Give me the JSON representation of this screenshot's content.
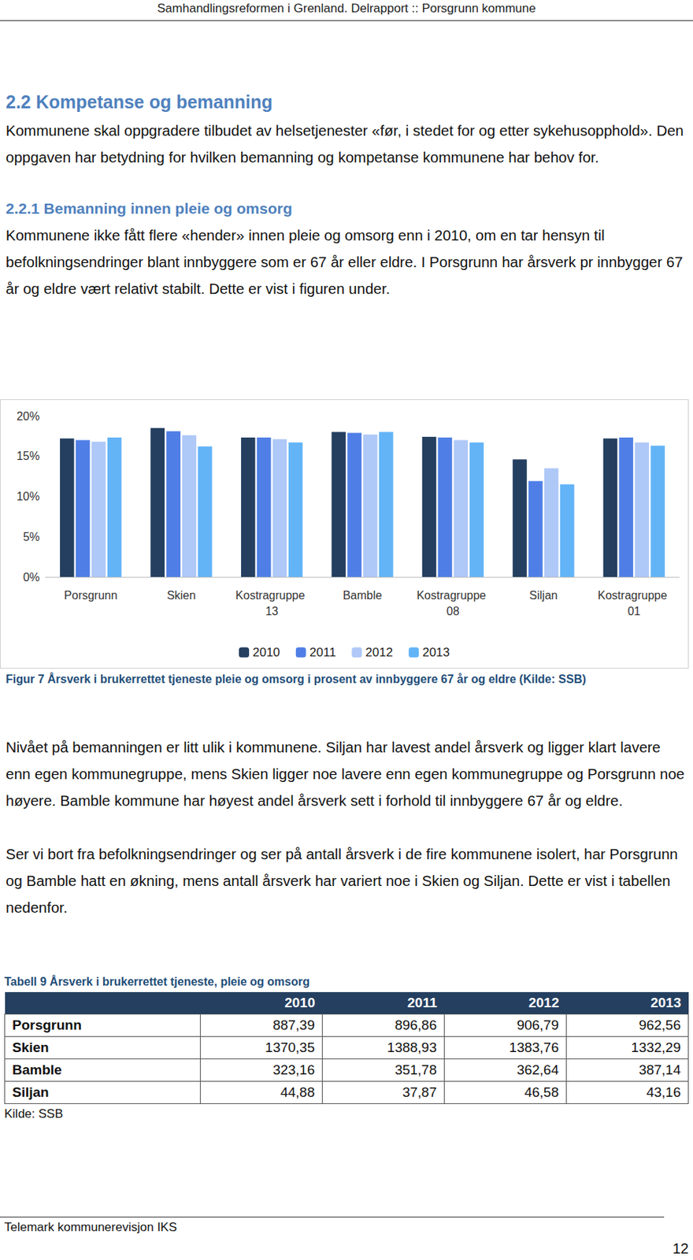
{
  "header": "Samhandlingsreformen i Grenland. Delrapport :: Porsgrunn kommune",
  "section": {
    "title": "2.2 Kompetanse og bemanning",
    "paragraphs": [
      "Kommunene skal oppgradere tilbudet av helsetjenester «før, i stedet for og etter sykehusopphold». Den oppgaven har betydning for hvilken bemanning og kompetanse kommunene har behov for."
    ]
  },
  "subsection": {
    "title": "2.2.1 Bemanning innen pleie og omsorg",
    "paragraphs": [
      "Kommunene ikke fått flere «hender» innen pleie og omsorg enn i 2010, om en tar hensyn til befolkningsendringer blant innbyggere som er 67 år eller eldre. I Porsgrunn har årsverk pr innbygger 67 år og eldre vært relativt stabilt. Dette er vist i figuren under."
    ]
  },
  "chart_data": {
    "type": "bar",
    "categories": [
      "Porsgrunn",
      "Skien",
      "Kostragruppe 13",
      "Bamble",
      "Kostragruppe 08",
      "Siljan",
      "Kostragruppe 01"
    ],
    "series": [
      {
        "name": "2010",
        "color": "#243f60",
        "values": [
          17.2,
          18.5,
          17.3,
          18.0,
          17.4,
          14.6,
          17.2
        ]
      },
      {
        "name": "2011",
        "color": "#4f7fe6",
        "values": [
          17.0,
          18.1,
          17.3,
          17.9,
          17.3,
          11.9,
          17.3
        ]
      },
      {
        "name": "2012",
        "color": "#aec8f7",
        "values": [
          16.8,
          17.6,
          17.1,
          17.7,
          17.0,
          13.5,
          16.7
        ]
      },
      {
        "name": "2013",
        "color": "#63b4f7",
        "values": [
          17.3,
          16.2,
          16.7,
          18.0,
          16.7,
          11.5,
          16.3
        ]
      }
    ],
    "ylim": [
      0,
      20
    ],
    "yticks": [
      {
        "value": 0,
        "label": "0%"
      },
      {
        "value": 5,
        "label": "5%"
      },
      {
        "value": 10,
        "label": "10%"
      },
      {
        "value": 15,
        "label": "15%"
      },
      {
        "value": 20,
        "label": "20%"
      }
    ],
    "grid": false,
    "legend": "bottom"
  },
  "figure_caption": "Figur 7 Årsverk i brukerrettet tjeneste pleie og omsorg i prosent av innbyggere 67 år og eldre (Kilde: SSB)",
  "paragraphs": [
    "Nivået på bemanningen er litt ulik i kommunene. Siljan har lavest andel årsverk og ligger klart lavere enn egen kommunegruppe, mens Skien ligger noe lavere enn egen kommunegruppe og Porsgrunn noe høyere. Bamble kommune har høyest andel årsverk sett i forhold til innbyggere 67 år og eldre.",
    "Ser vi bort fra befolkningsendringer og ser på antall årsverk i de fire kommunene isolert, har Porsgrunn og Bamble hatt en økning, mens antall årsverk har variert noe i Skien og Siljan. Dette er vist i tabellen nedenfor."
  ],
  "table": {
    "caption": "Tabell 9 Årsverk i brukerrettet tjeneste, pleie og omsorg",
    "columns": [
      "",
      "2010",
      "2011",
      "2012",
      "2013"
    ],
    "rows": [
      [
        "Porsgrunn",
        "887,39",
        "896,86",
        "906,79",
        "962,56"
      ],
      [
        "Skien",
        "1370,35",
        "1388,93",
        "1383,76",
        "1332,29"
      ],
      [
        "Bamble",
        "323,16",
        "351,78",
        "362,64",
        "387,14"
      ],
      [
        "Siljan",
        "44,88",
        "37,87",
        "46,58",
        "43,16"
      ]
    ],
    "source": "Kilde: SSB"
  },
  "footer": "Telemark kommunerevisjon IKS",
  "page_number": "12"
}
